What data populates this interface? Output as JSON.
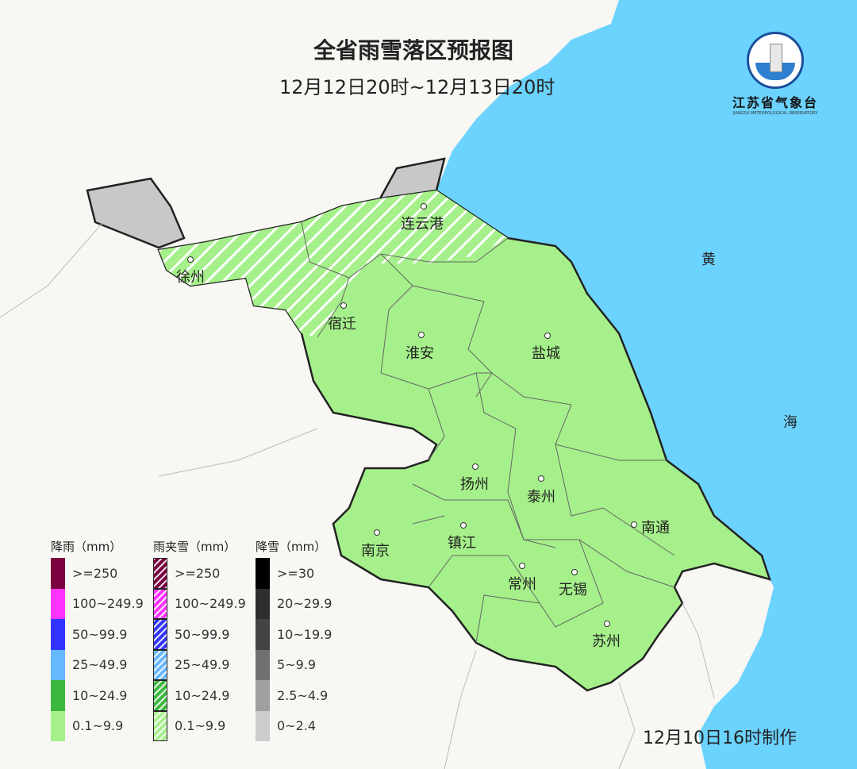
{
  "title": "全省雨雪落区预报图",
  "period": "12月12日20时~12月13日20时",
  "made_time": "12月10日16时制作",
  "logo": {
    "name": "江苏省气象台",
    "english": "JIANGSU METEOROLOGICAL OBSERVATORY"
  },
  "sea_labels": [
    "黄",
    "海"
  ],
  "cities": [
    "连云港",
    "徐州",
    "宿迁",
    "淮安",
    "盐城",
    "扬州",
    "泰州",
    "南通",
    "南京",
    "镇江",
    "常州",
    "无锡",
    "苏州"
  ],
  "colors": {
    "sea": "#6cd3ff",
    "land": "#f8f7f3",
    "rain_light": "#a5f08a",
    "snow_light": "#c8c8c8"
  },
  "legend": {
    "rain": {
      "title": "降雨（mm）",
      "items": [
        {
          "label": ">=250",
          "color": "#7a0040"
        },
        {
          "label": "100~249.9",
          "color": "#ff33ff"
        },
        {
          "label": "50~99.9",
          "color": "#3333ff"
        },
        {
          "label": "25~49.9",
          "color": "#66b8ff"
        },
        {
          "label": "10~24.9",
          "color": "#3cb83c"
        },
        {
          "label": "0.1~9.9",
          "color": "#a5f08a"
        }
      ]
    },
    "sleet": {
      "title": "雨夹雪（mm）",
      "items": [
        {
          "label": ">=250",
          "color": "#7a0040"
        },
        {
          "label": "100~249.9",
          "color": "#ff33ff"
        },
        {
          "label": "50~99.9",
          "color": "#3333ff"
        },
        {
          "label": "25~49.9",
          "color": "#66b8ff"
        },
        {
          "label": "10~24.9",
          "color": "#3cb83c"
        },
        {
          "label": "0.1~9.9",
          "color": "#a5f08a"
        }
      ]
    },
    "snow": {
      "title": "降雪（mm）",
      "items": [
        {
          "label": ">=30",
          "color": "#000000"
        },
        {
          "label": "20~29.9",
          "color": "#2e2e2e"
        },
        {
          "label": "10~19.9",
          "color": "#444444"
        },
        {
          "label": "5~9.9",
          "color": "#707070"
        },
        {
          "label": "2.5~4.9",
          "color": "#a0a0a0"
        },
        {
          "label": "0~2.4",
          "color": "#cccccc"
        }
      ]
    }
  }
}
